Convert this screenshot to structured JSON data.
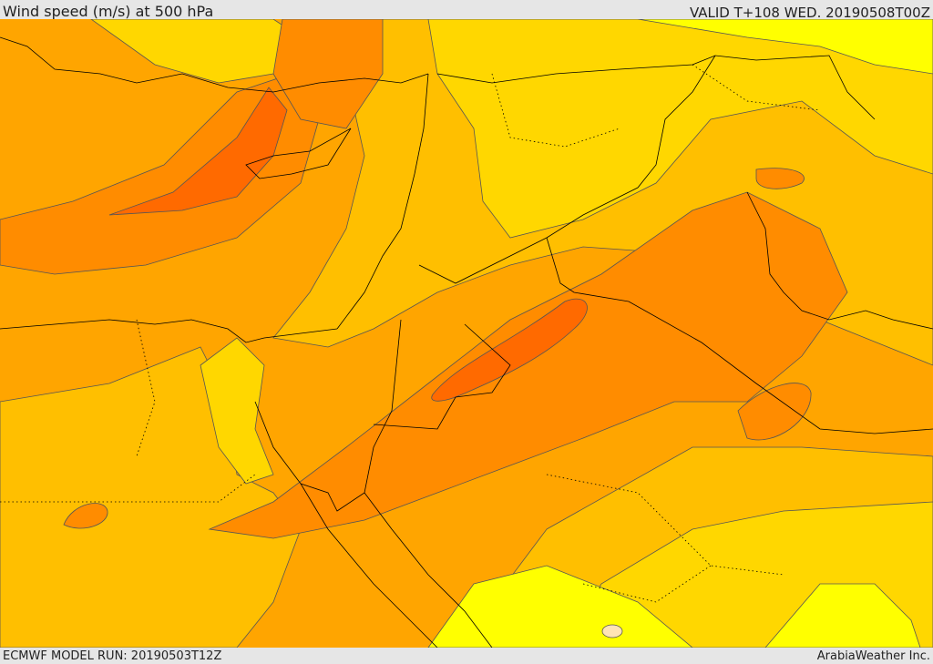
{
  "header": {
    "title": "Wind speed (m/s) at 500 hPa",
    "valid": "VALID T+108 WED. 20190508T00Z"
  },
  "footer": {
    "model_run": "ECMWF MODEL RUN: 20190503T12Z",
    "credit": "ArabiaWeather Inc."
  },
  "map": {
    "colors": {
      "band_yellow": "#ffff00",
      "band_gold": "#ffd700",
      "band_amber": "#ffbf00",
      "band_orange_light": "#ffa500",
      "band_orange": "#ff8c00",
      "band_orange_dark": "#ff6a00",
      "calm_patch": "#ffe4b5",
      "contour_line": "#555555",
      "coast_border": "#000000"
    }
  }
}
